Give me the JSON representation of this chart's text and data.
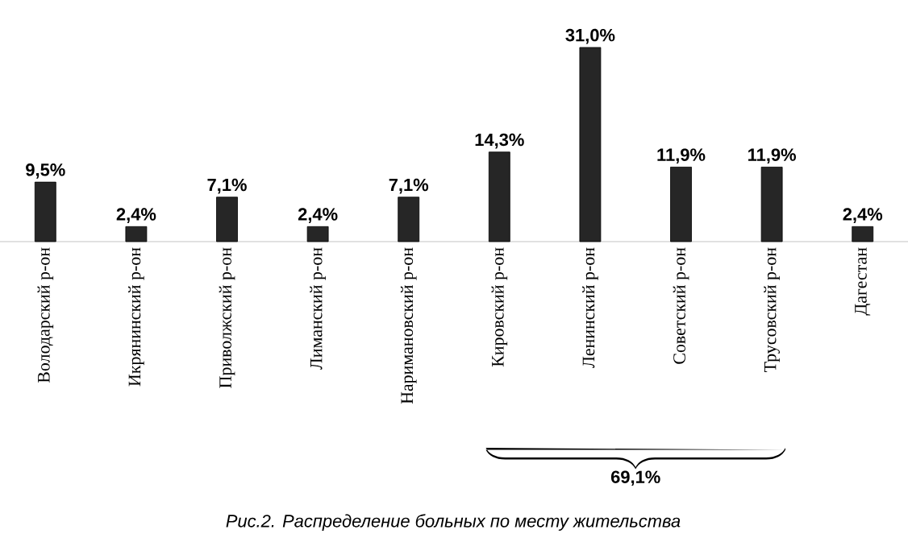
{
  "chart_data": {
    "type": "bar",
    "categories": [
      "Володарский р-он",
      "Икрянинский р-он",
      "Приволжский р-он",
      "Лиманский р-он",
      "Наримановский р-он",
      "Кировский р-он",
      "Ленинский р-он",
      "Советский р-он",
      "Трусовский р-он",
      "Дагестан"
    ],
    "values": [
      9.5,
      2.4,
      7.1,
      2.4,
      7.1,
      14.3,
      31.0,
      11.9,
      11.9,
      2.4
    ],
    "value_labels": [
      "9,5%",
      "2,4%",
      "7,1%",
      "2,4%",
      "7,1%",
      "14,3%",
      "31,0%",
      "11,9%",
      "11,9%",
      "2,4%"
    ],
    "color": "#262626",
    "annotations": [
      "69,1%",
      "Рис.2. Распределение больных по месту жительства"
    ]
  }
}
